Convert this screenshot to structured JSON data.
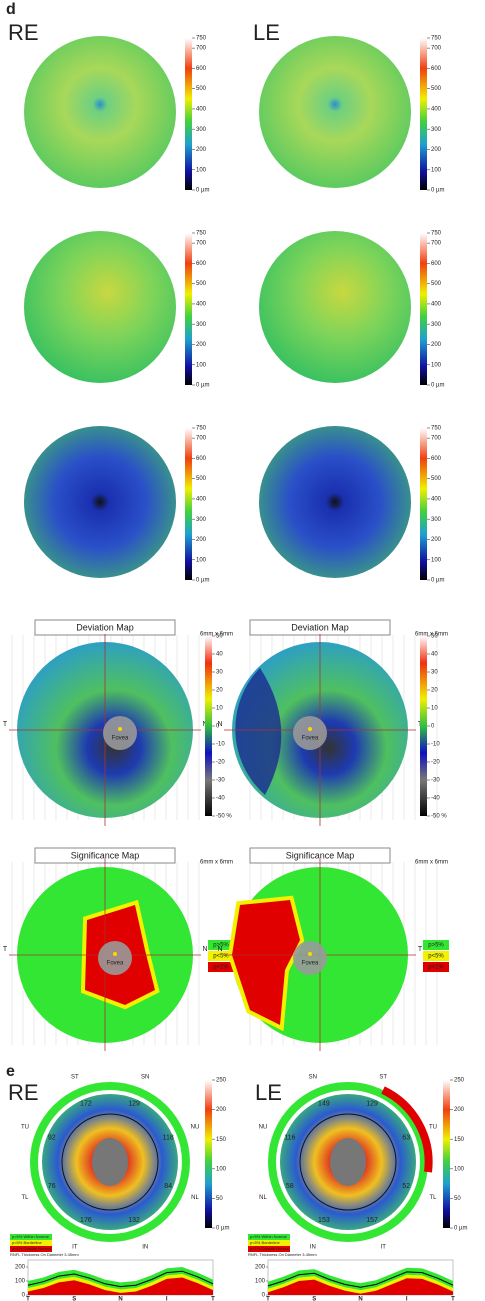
{
  "panel_d": {
    "label": "d",
    "left_eye": "RE",
    "right_eye": "LE",
    "thickness_scale": {
      "ylim": [
        0,
        750
      ],
      "yticks": [
        {
          "value": 0,
          "label": "0 µm"
        },
        100,
        200,
        300,
        400,
        500,
        600,
        700,
        750
      ]
    },
    "deviation_map": {
      "title": "Deviation Map",
      "size": "6mm x 6mm",
      "ylim": [
        -50,
        50
      ],
      "yticks": [
        {
          "value": -50,
          "label": "-50 %"
        },
        -40,
        -30,
        -20,
        -10,
        0,
        10,
        20,
        30,
        40,
        50
      ],
      "left_labels": [
        "T",
        "N"
      ],
      "right_labels": [
        "N",
        "T"
      ],
      "fovea": "Fovea"
    },
    "significance_map": {
      "title": "Significance Map",
      "size": "6mm x 6mm",
      "legend": [
        {
          "label": "p>5%",
          "color": "#33e633"
        },
        {
          "label": "p<5%",
          "color": "#f2f200"
        },
        {
          "label": "p<1%",
          "color": "#e00000"
        }
      ]
    }
  },
  "panel_e": {
    "label": "e",
    "left_eye": "RE",
    "right_eye": "LE",
    "rnfl_scale": {
      "ylim": [
        0,
        250
      ],
      "yticks": [
        {
          "value": 0,
          "label": "0 µm"
        },
        50,
        100,
        150,
        200,
        250
      ]
    },
    "sectors_left": [
      {
        "name": "ST",
        "value": 172
      },
      {
        "name": "SN",
        "value": 129
      },
      {
        "name": "NU",
        "value": 118
      },
      {
        "name": "NL",
        "value": 84
      },
      {
        "name": "IN",
        "value": 132
      },
      {
        "name": "IT",
        "value": 176
      },
      {
        "name": "TL",
        "value": 76
      },
      {
        "name": "TU",
        "value": 92
      }
    ],
    "sectors_right": [
      {
        "name": "SN",
        "value": 149
      },
      {
        "name": "ST",
        "value": 129
      },
      {
        "name": "TU",
        "value": 63
      },
      {
        "name": "TL",
        "value": 52
      },
      {
        "name": "IT",
        "value": 157
      },
      {
        "name": "IN",
        "value": 153
      },
      {
        "name": "NL",
        "value": 58
      },
      {
        "name": "NU",
        "value": 116
      }
    ],
    "legend": [
      "p>5% Within Normal",
      "p<5% Borderline",
      "p<1% Outside Normal"
    ],
    "diameter_note": "RNFL Thickness On Diameter 3.45mm",
    "profile": {
      "categories": [
        "T",
        "S",
        "N",
        "I",
        "T"
      ],
      "ylim": [
        0,
        250
      ],
      "yticks": [
        0,
        100,
        200
      ],
      "left_values": [
        70,
        95,
        135,
        150,
        120,
        80,
        60,
        70,
        110,
        160,
        170,
        130,
        80
      ],
      "right_values": [
        65,
        100,
        145,
        155,
        110,
        75,
        55,
        75,
        120,
        165,
        160,
        120,
        70
      ]
    }
  }
}
